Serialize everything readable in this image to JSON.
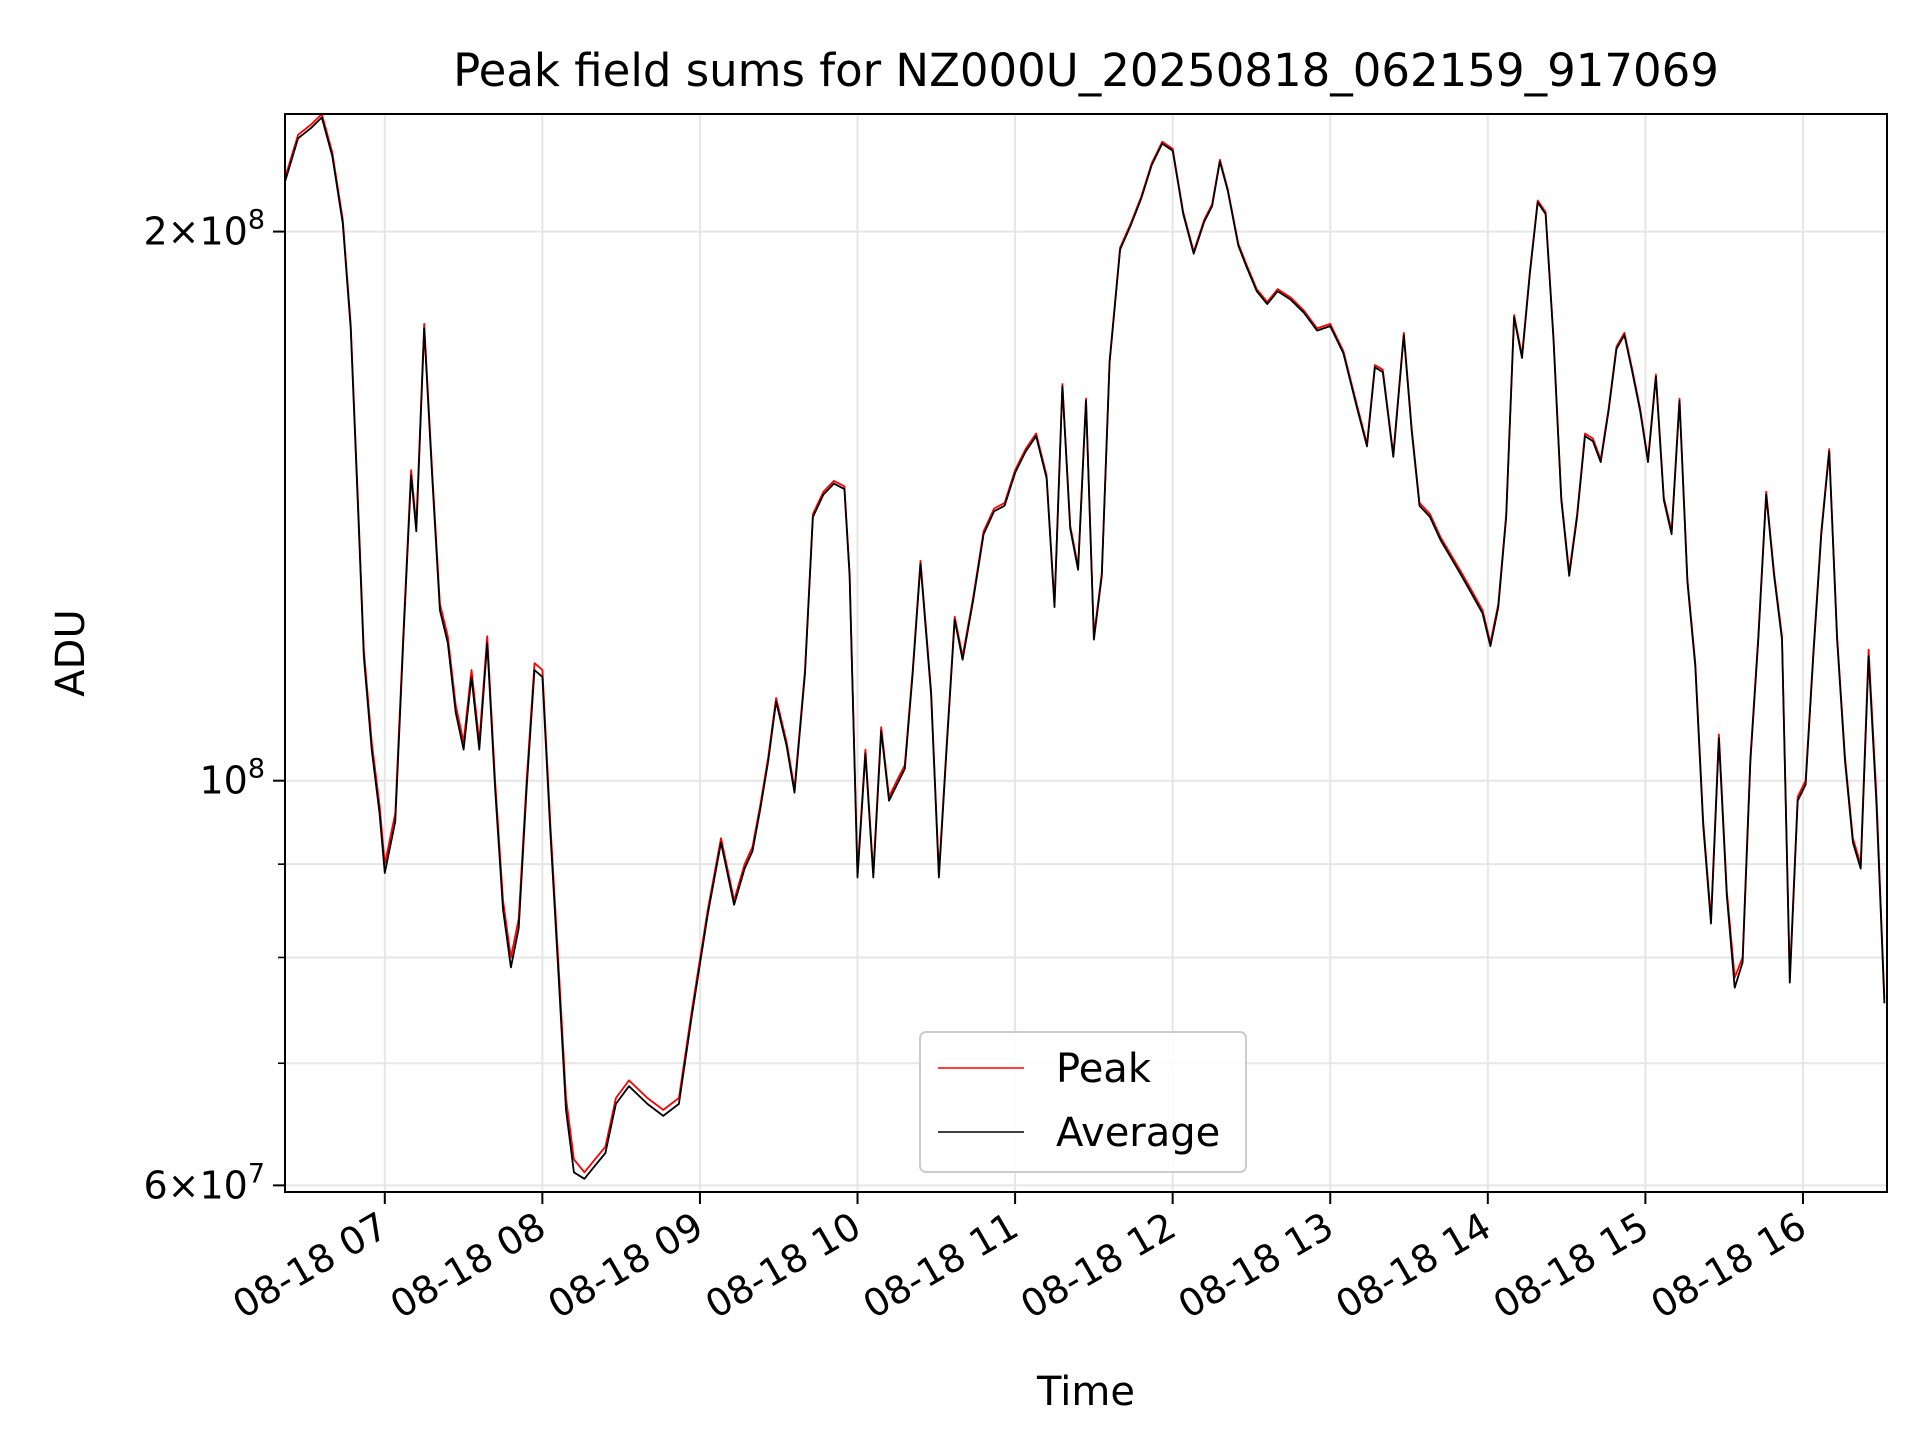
{
  "chart_data": {
    "type": "line",
    "title": "Peak field sums for NZ000U_20250818_062159_917069",
    "xlabel": "Time",
    "ylabel": "ADU",
    "yscale": "log",
    "ylim": [
      59500000,
      232000000
    ],
    "xlim": [
      "2025-08-18T06:22:00",
      "2025-08-18T16:32:00"
    ],
    "grid": true,
    "legend_position": "lower-center",
    "x_tick_labels": [
      "08-18 07",
      "08-18 08",
      "08-18 09",
      "08-18 10",
      "08-18 11",
      "08-18 12",
      "08-18 13",
      "08-18 14",
      "08-18 15",
      "08-18 16"
    ],
    "x_ticks": [
      "2025-08-18T07:00",
      "2025-08-18T08:00",
      "2025-08-18T09:00",
      "2025-08-18T10:00",
      "2025-08-18T11:00",
      "2025-08-18T12:00",
      "2025-08-18T13:00",
      "2025-08-18T14:00",
      "2025-08-18T15:00",
      "2025-08-18T16:00"
    ],
    "y_ticks": [
      {
        "value": 60000000,
        "mantissa": "6",
        "exponent": "7",
        "times": "×",
        "base": "10"
      },
      {
        "value": 100000000,
        "mantissa": "",
        "exponent": "8",
        "times": "",
        "base": "10"
      },
      {
        "value": 200000000,
        "mantissa": "2",
        "exponent": "8",
        "times": "×",
        "base": "10"
      }
    ],
    "y_minor_ticks": [
      70000000,
      80000000,
      90000000
    ],
    "x": [
      "2025-08-18T06:22",
      "2025-08-18T06:27",
      "2025-08-18T06:32",
      "2025-08-18T06:36",
      "2025-08-18T06:40",
      "2025-08-18T06:44",
      "2025-08-18T06:47",
      "2025-08-18T06:50",
      "2025-08-18T06:52",
      "2025-08-18T06:55",
      "2025-08-18T06:58",
      "2025-08-18T07:00",
      "2025-08-18T07:04",
      "2025-08-18T07:07",
      "2025-08-18T07:10",
      "2025-08-18T07:12",
      "2025-08-18T07:15",
      "2025-08-18T07:18",
      "2025-08-18T07:21",
      "2025-08-18T07:24",
      "2025-08-18T07:27",
      "2025-08-18T07:30",
      "2025-08-18T07:33",
      "2025-08-18T07:36",
      "2025-08-18T07:39",
      "2025-08-18T07:42",
      "2025-08-18T07:45",
      "2025-08-18T07:48",
      "2025-08-18T07:51",
      "2025-08-18T07:54",
      "2025-08-18T07:57",
      "2025-08-18T08:00",
      "2025-08-18T08:03",
      "2025-08-18T08:06",
      "2025-08-18T08:09",
      "2025-08-18T08:12",
      "2025-08-18T08:16",
      "2025-08-18T08:20",
      "2025-08-18T08:24",
      "2025-08-18T08:28",
      "2025-08-18T08:33",
      "2025-08-18T08:40",
      "2025-08-18T08:46",
      "2025-08-18T08:52",
      "2025-08-18T08:57",
      "2025-08-18T09:03",
      "2025-08-18T09:08",
      "2025-08-18T09:13",
      "2025-08-18T09:17",
      "2025-08-18T09:20",
      "2025-08-18T09:23",
      "2025-08-18T09:26",
      "2025-08-18T09:29",
      "2025-08-18T09:33",
      "2025-08-18T09:36",
      "2025-08-18T09:40",
      "2025-08-18T09:43",
      "2025-08-18T09:47",
      "2025-08-18T09:51",
      "2025-08-18T09:55",
      "2025-08-18T09:57",
      "2025-08-18T10:00",
      "2025-08-18T10:03",
      "2025-08-18T10:06",
      "2025-08-18T10:09",
      "2025-08-18T10:12",
      "2025-08-18T10:15",
      "2025-08-18T10:18",
      "2025-08-18T10:21",
      "2025-08-18T10:24",
      "2025-08-18T10:28",
      "2025-08-18T10:31",
      "2025-08-18T10:34",
      "2025-08-18T10:37",
      "2025-08-18T10:40",
      "2025-08-18T10:44",
      "2025-08-18T10:48",
      "2025-08-18T10:52",
      "2025-08-18T10:56",
      "2025-08-18T11:00",
      "2025-08-18T11:04",
      "2025-08-18T11:08",
      "2025-08-18T11:12",
      "2025-08-18T11:15",
      "2025-08-18T11:18",
      "2025-08-18T11:21",
      "2025-08-18T11:24",
      "2025-08-18T11:27",
      "2025-08-18T11:30",
      "2025-08-18T11:33",
      "2025-08-18T11:36",
      "2025-08-18T11:40",
      "2025-08-18T11:44",
      "2025-08-18T11:48",
      "2025-08-18T11:52",
      "2025-08-18T11:56",
      "2025-08-18T12:00",
      "2025-08-18T12:04",
      "2025-08-18T12:08",
      "2025-08-18T12:12",
      "2025-08-18T12:15",
      "2025-08-18T12:18",
      "2025-08-18T12:21",
      "2025-08-18T12:25",
      "2025-08-18T12:28",
      "2025-08-18T12:32",
      "2025-08-18T12:36",
      "2025-08-18T12:40",
      "2025-08-18T12:45",
      "2025-08-18T12:50",
      "2025-08-18T12:55",
      "2025-08-18T13:00",
      "2025-08-18T13:05",
      "2025-08-18T13:10",
      "2025-08-18T13:14",
      "2025-08-18T13:17",
      "2025-08-18T13:20",
      "2025-08-18T13:24",
      "2025-08-18T13:28",
      "2025-08-18T13:31",
      "2025-08-18T13:34",
      "2025-08-18T13:38",
      "2025-08-18T13:42",
      "2025-08-18T13:46",
      "2025-08-18T13:50",
      "2025-08-18T13:54",
      "2025-08-18T13:58",
      "2025-08-18T14:01",
      "2025-08-18T14:04",
      "2025-08-18T14:07",
      "2025-08-18T14:10",
      "2025-08-18T14:13",
      "2025-08-18T14:16",
      "2025-08-18T14:19",
      "2025-08-18T14:22",
      "2025-08-18T14:25",
      "2025-08-18T14:28",
      "2025-08-18T14:31",
      "2025-08-18T14:34",
      "2025-08-18T14:37",
      "2025-08-18T14:40",
      "2025-08-18T14:43",
      "2025-08-18T14:46",
      "2025-08-18T14:49",
      "2025-08-18T14:52",
      "2025-08-18T14:55",
      "2025-08-18T14:58",
      "2025-08-18T15:01",
      "2025-08-18T15:04",
      "2025-08-18T15:07",
      "2025-08-18T15:10",
      "2025-08-18T15:13",
      "2025-08-18T15:16",
      "2025-08-18T15:19",
      "2025-08-18T15:22",
      "2025-08-18T15:25",
      "2025-08-18T15:28",
      "2025-08-18T15:31",
      "2025-08-18T15:34",
      "2025-08-18T15:37",
      "2025-08-18T15:40",
      "2025-08-18T15:43",
      "2025-08-18T15:46",
      "2025-08-18T15:49",
      "2025-08-18T15:52",
      "2025-08-18T15:55",
      "2025-08-18T15:58",
      "2025-08-18T16:01",
      "2025-08-18T16:04",
      "2025-08-18T16:07",
      "2025-08-18T16:10",
      "2025-08-18T16:13",
      "2025-08-18T16:16",
      "2025-08-18T16:19",
      "2025-08-18T16:22",
      "2025-08-18T16:25",
      "2025-08-18T16:28",
      "2025-08-18T16:31"
    ],
    "series": [
      {
        "name": "Peak",
        "color": "#ff0000",
        "values": [
          214000000,
          226000000,
          229000000,
          232000000,
          221000000,
          203000000,
          178000000,
          140000000,
          118000000,
          105000000,
          97000000,
          90000000,
          96000000,
          120000000,
          148000000,
          138000000,
          178000000,
          148000000,
          125000000,
          120000000,
          110000000,
          105000000,
          115000000,
          105000000,
          120000000,
          100000000,
          86000000,
          80000000,
          84000000,
          100000000,
          116000000,
          115000000,
          95000000,
          80000000,
          67000000,
          62000000,
          61000000,
          62000000,
          63000000,
          67000000,
          68500000,
          67000000,
          66000000,
          67000000,
          75000000,
          85000000,
          93000000,
          86000000,
          90000000,
          92000000,
          97000000,
          103000000,
          111000000,
          105000000,
          99000000,
          115000000,
          140000000,
          144000000,
          146000000,
          145000000,
          130000000,
          89000000,
          104000000,
          89000000,
          107000000,
          98000000,
          100000000,
          102000000,
          115000000,
          132000000,
          112000000,
          89000000,
          105000000,
          123000000,
          117000000,
          126000000,
          137000000,
          141000000,
          142000000,
          148000000,
          152000000,
          155000000,
          147000000,
          125000000,
          165000000,
          138000000,
          131000000,
          162000000,
          120000000,
          130000000,
          170000000,
          196000000,
          202000000,
          209000000,
          218000000,
          224000000,
          222000000,
          205000000,
          195000000,
          203000000,
          207000000,
          219000000,
          211000000,
          197000000,
          192000000,
          186000000,
          183000000,
          186000000,
          184000000,
          181000000,
          177000000,
          178000000,
          172000000,
          161000000,
          153000000,
          169000000,
          168000000,
          151000000,
          176000000,
          156000000,
          142000000,
          140000000,
          136000000,
          133000000,
          130000000,
          127000000,
          124000000,
          119000000,
          125000000,
          140000000,
          180000000,
          171000000,
          190000000,
          208000000,
          205000000,
          175000000,
          143000000,
          130000000,
          140000000,
          155000000,
          154000000,
          150000000,
          160000000,
          173000000,
          176000000,
          168000000,
          160000000,
          150000000,
          167000000,
          143000000,
          137000000,
          162000000,
          129000000,
          116000000,
          95000000,
          84000000,
          106000000,
          87000000,
          78000000,
          80000000,
          103000000,
          120000000,
          144000000,
          130000000,
          120000000,
          78000000,
          98000000,
          100000000,
          118000000,
          137000000,
          152000000,
          120000000,
          103000000,
          93000000,
          90000000,
          118000000,
          98000000,
          76000000
        ]
      },
      {
        "name": "Average",
        "color": "#000000",
        "values": [
          213000000,
          225000000,
          228000000,
          231000000,
          220000000,
          202000000,
          177000000,
          139000000,
          117000000,
          104000000,
          96000000,
          89000000,
          95000000,
          119000000,
          147000000,
          137000000,
          177000000,
          147000000,
          124000000,
          119000000,
          109000000,
          104000000,
          114000000,
          104000000,
          119000000,
          99000000,
          85000000,
          79000000,
          83000000,
          99000000,
          115000000,
          114000000,
          94000000,
          79000000,
          66000000,
          61000000,
          60500000,
          61500000,
          62500000,
          66500000,
          68000000,
          66500000,
          65500000,
          66500000,
          74500000,
          84500000,
          92500000,
          85500000,
          89500000,
          91500000,
          96500000,
          102500000,
          110500000,
          104500000,
          98500000,
          114500000,
          139500000,
          143500000,
          145500000,
          144500000,
          129500000,
          88500000,
          103500000,
          88500000,
          106500000,
          97500000,
          99500000,
          101500000,
          114500000,
          131500000,
          111500000,
          88500000,
          104500000,
          122500000,
          116500000,
          125500000,
          136500000,
          140500000,
          141500000,
          147500000,
          151500000,
          154500000,
          146500000,
          124500000,
          164500000,
          137500000,
          130500000,
          161500000,
          119500000,
          129500000,
          169500000,
          195500000,
          201500000,
          208500000,
          217500000,
          223500000,
          221500000,
          204500000,
          194500000,
          202500000,
          206500000,
          218500000,
          210500000,
          196500000,
          191500000,
          185500000,
          182500000,
          185500000,
          183500000,
          180500000,
          176500000,
          177500000,
          171500000,
          160500000,
          152500000,
          168500000,
          167500000,
          150500000,
          175500000,
          155500000,
          141500000,
          139500000,
          135500000,
          132500000,
          129500000,
          126500000,
          123500000,
          118500000,
          124500000,
          139500000,
          179500000,
          170500000,
          189500000,
          207500000,
          204500000,
          174500000,
          142500000,
          129500000,
          139500000,
          154500000,
          153500000,
          149500000,
          159500000,
          172500000,
          175500000,
          167500000,
          159500000,
          149500000,
          166500000,
          142500000,
          136500000,
          161500000,
          128500000,
          115500000,
          94500000,
          83500000,
          105500000,
          86500000,
          77000000,
          79500000,
          102500000,
          119500000,
          143500000,
          129500000,
          119500000,
          77500000,
          97500000,
          99500000,
          117500000,
          136500000,
          151500000,
          119500000,
          102500000,
          92500000,
          89500000,
          117000000,
          97000000,
          75500000
        ]
      }
    ]
  }
}
